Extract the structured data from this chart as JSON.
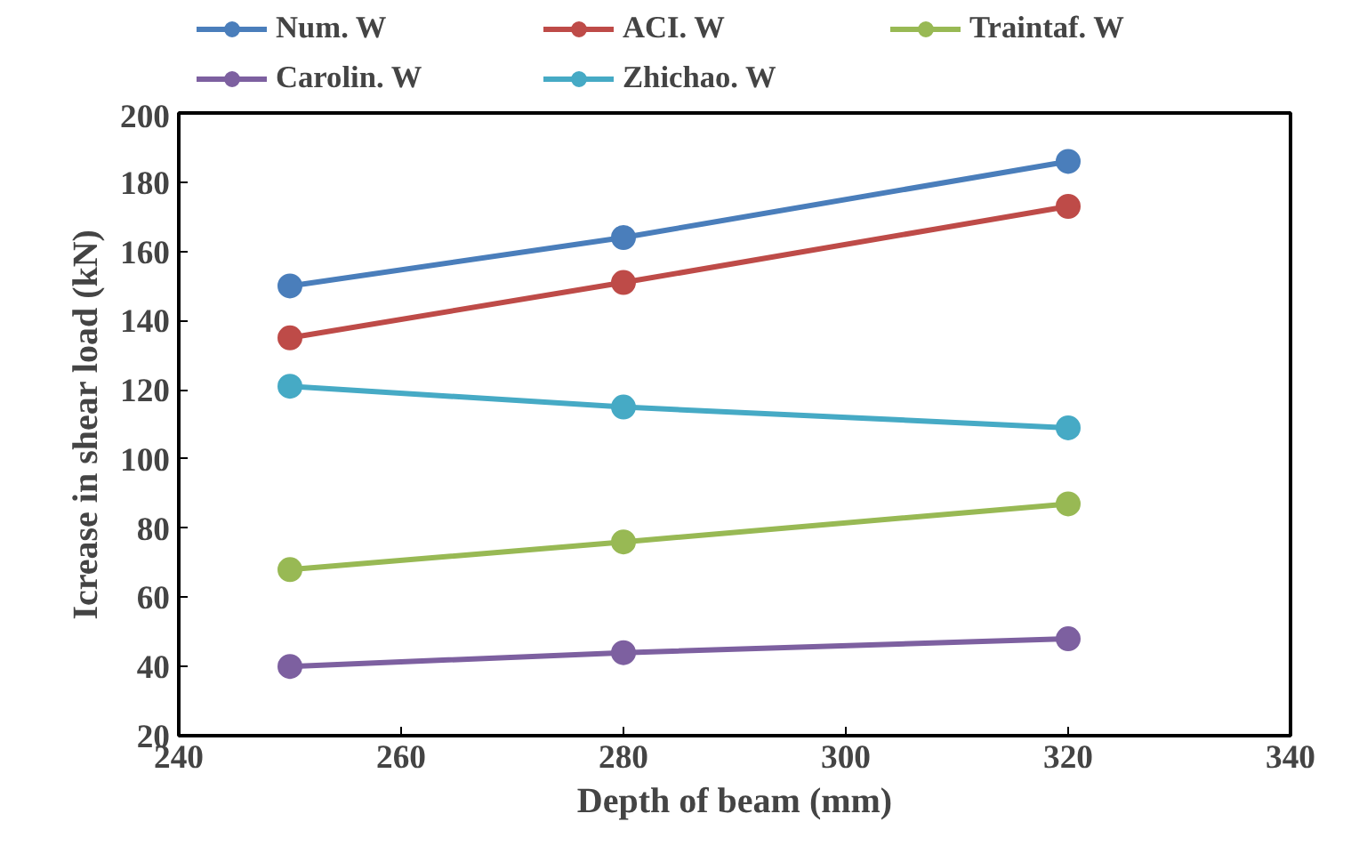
{
  "chart_data": {
    "type": "line",
    "xlabel": "Depth of beam (mm)",
    "ylabel": "Icrease in shear load (kN)",
    "x": [
      250,
      280,
      320
    ],
    "series": [
      {
        "name": "Num. W",
        "color": "#4a7ebb",
        "values": [
          150,
          164,
          186
        ]
      },
      {
        "name": "ACI. W",
        "color": "#be4b48",
        "values": [
          135,
          151,
          173
        ]
      },
      {
        "name": "Traintaf. W",
        "color": "#98b954",
        "values": [
          68,
          76,
          87
        ]
      },
      {
        "name": "Carolin. W",
        "color": "#7d60a0",
        "values": [
          40,
          44,
          48
        ]
      },
      {
        "name": "Zhichao. W",
        "color": "#46aac5",
        "values": [
          121,
          115,
          109
        ]
      }
    ],
    "xlim": [
      240,
      340
    ],
    "xticks": [
      240,
      260,
      280,
      300,
      320,
      340
    ],
    "ylim": [
      20,
      200
    ],
    "yticks": [
      20,
      40,
      60,
      80,
      100,
      120,
      140,
      160,
      180,
      200
    ],
    "grid": false,
    "legend": "top",
    "marker": "circle",
    "line_style": "solid"
  }
}
